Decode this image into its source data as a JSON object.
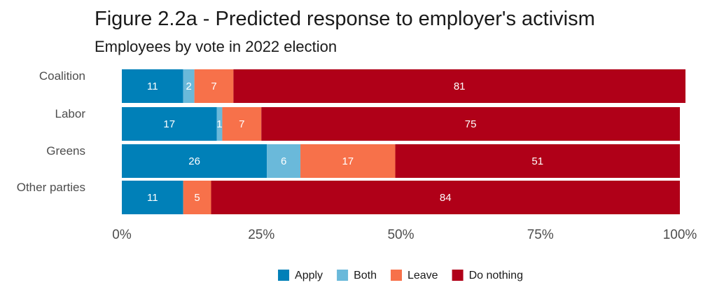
{
  "chart_data": {
    "type": "bar",
    "orientation": "horizontal",
    "stacked": true,
    "title": "Figure 2.2a - Predicted response to employer's activism",
    "subtitle": "Employees by vote in 2022 election",
    "categories": [
      "Coalition",
      "Labor",
      "Greens",
      "Other parties"
    ],
    "series": [
      {
        "name": "Apply",
        "color": "#0080b8",
        "values": [
          11,
          17,
          26,
          11
        ]
      },
      {
        "name": "Both",
        "color": "#6ab9da",
        "values": [
          2,
          1,
          6,
          0
        ]
      },
      {
        "name": "Leave",
        "color": "#f7714a",
        "values": [
          7,
          7,
          17,
          5
        ]
      },
      {
        "name": "Do nothing",
        "color": "#b00018",
        "values": [
          81,
          75,
          51,
          84
        ]
      }
    ],
    "xlim": [
      0,
      100
    ],
    "x_ticks": [
      "0%",
      "25%",
      "50%",
      "75%",
      "100%"
    ],
    "grid": false,
    "legend_position": "bottom"
  }
}
